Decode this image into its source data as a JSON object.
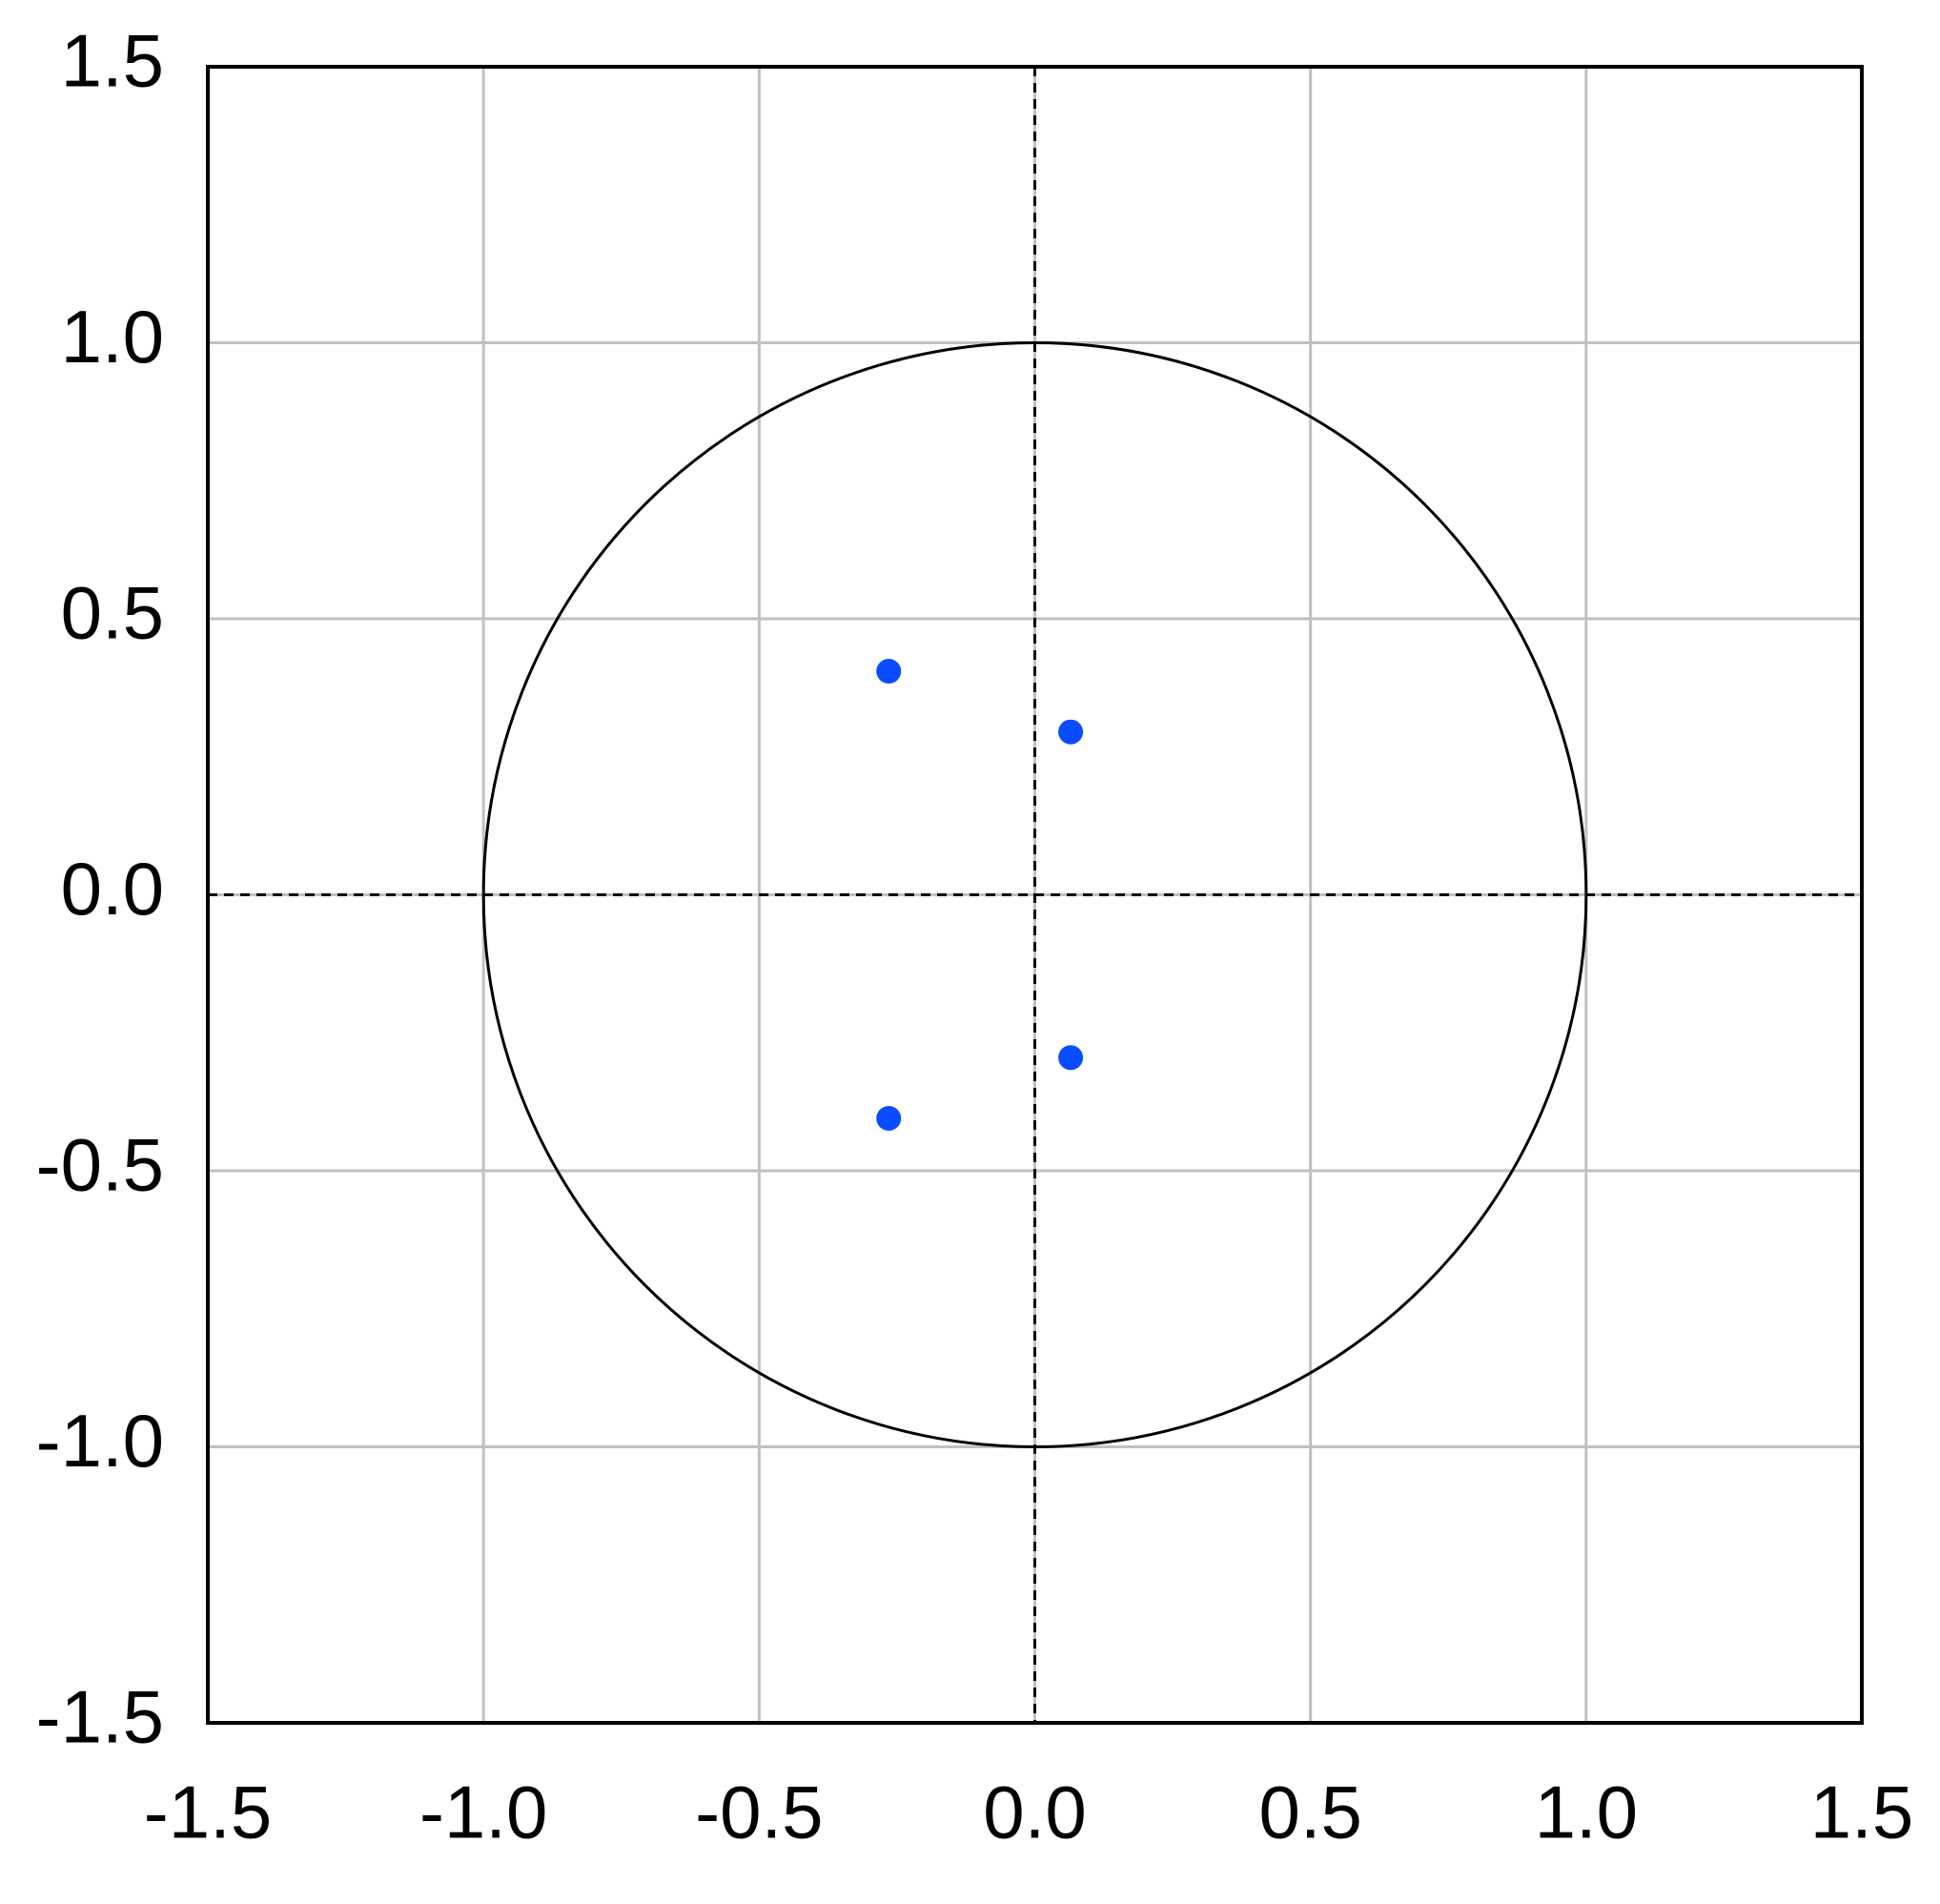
{
  "chart_data": {
    "type": "scatter",
    "series": [
      {
        "color": "#0a4cff",
        "x": [
          -0.265,
          0.065,
          0.065,
          -0.265
        ],
        "values": [
          0.405,
          0.295,
          -0.295,
          -0.405
        ]
      }
    ],
    "xlim": [
      -1.5,
      1.5
    ],
    "ylim": [
      -1.5,
      1.5
    ],
    "xticks": [
      -1.5,
      {
        "value": -1.0,
        "label": "-1.0"
      },
      -0.5,
      {
        "value": 0,
        "label": "0.0"
      },
      0.5,
      {
        "value": 1.0,
        "label": "1.0"
      },
      1.5
    ],
    "yticks": [
      -1.5,
      {
        "value": -1.0,
        "label": "-1.0"
      },
      -0.5,
      {
        "value": 0,
        "label": "0.0"
      },
      0.5,
      {
        "value": 1.0,
        "label": "1.0"
      },
      1.5
    ],
    "grid": true,
    "zero_lines": true,
    "reference_circle": {
      "radius": 1
    }
  }
}
